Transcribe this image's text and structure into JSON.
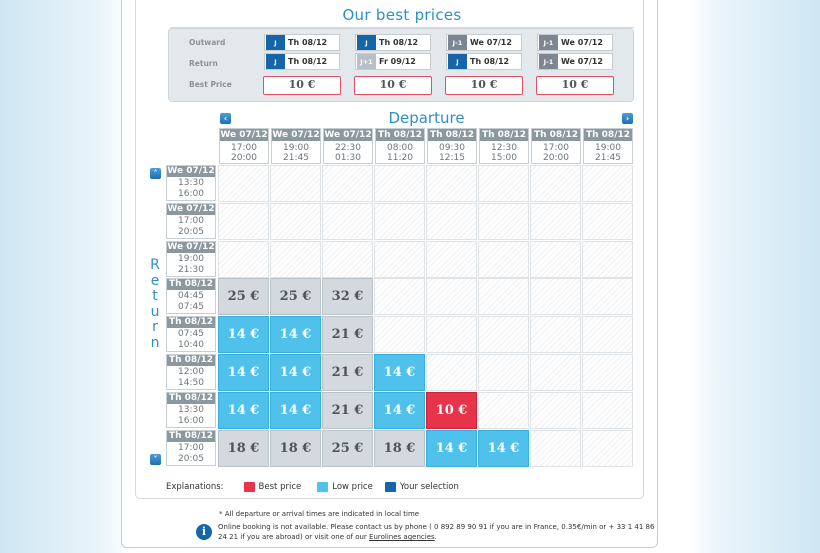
{
  "best_prices": {
    "title": "Our best prices",
    "labels": {
      "outward": "Outward",
      "return": "Return",
      "best_price": "Best Price"
    },
    "options": [
      {
        "out_tag": "J",
        "out_date": "Th 08/12",
        "ret_tag": "J",
        "ret_date": "Th 08/12",
        "price": "10 €"
      },
      {
        "out_tag": "J",
        "out_date": "Th 08/12",
        "ret_tag": "J+1",
        "ret_date": "Fr 09/12",
        "price": "10 €"
      },
      {
        "out_tag": "J-1",
        "out_date": "We 07/12",
        "ret_tag": "J",
        "ret_date": "Th 08/12",
        "price": "10 €"
      },
      {
        "out_tag": "J-1",
        "out_date": "We 07/12",
        "ret_tag": "J-1",
        "ret_date": "We 07/12",
        "price": "10 €"
      }
    ]
  },
  "grid": {
    "departure_title": "Departure",
    "return_title": "Return",
    "prev_arrow": "‹",
    "next_arrow": "›",
    "up_arrow": "˄",
    "down_arrow": "˅",
    "columns": [
      {
        "date": "We 07/12",
        "dep": "17:00",
        "arr": "20:00"
      },
      {
        "date": "We 07/12",
        "dep": "19:00",
        "arr": "21:45"
      },
      {
        "date": "We 07/12",
        "dep": "22:30",
        "arr": "01:30"
      },
      {
        "date": "Th 08/12",
        "dep": "08:00",
        "arr": "11:20"
      },
      {
        "date": "Th 08/12",
        "dep": "09:30",
        "arr": "12:15"
      },
      {
        "date": "Th 08/12",
        "dep": "12:30",
        "arr": "15:00"
      },
      {
        "date": "Th 08/12",
        "dep": "17:00",
        "arr": "20:00"
      },
      {
        "date": "Th 08/12",
        "dep": "19:00",
        "arr": "21:45"
      }
    ],
    "rows": [
      {
        "date": "We 07/12",
        "dep": "13:30",
        "arr": "16:00",
        "cells": [
          "",
          "",
          "",
          "",
          "",
          "",
          "",
          ""
        ],
        "kinds": [
          "",
          "",
          "",
          "",
          "",
          "",
          "",
          ""
        ]
      },
      {
        "date": "We 07/12",
        "dep": "17:00",
        "arr": "20:05",
        "cells": [
          "",
          "",
          "",
          "",
          "",
          "",
          "",
          ""
        ],
        "kinds": [
          "",
          "",
          "",
          "",
          "",
          "",
          "",
          ""
        ]
      },
      {
        "date": "We 07/12",
        "dep": "19:00",
        "arr": "21:30",
        "cells": [
          "",
          "",
          "",
          "",
          "",
          "",
          "",
          ""
        ],
        "kinds": [
          "",
          "",
          "",
          "",
          "",
          "",
          "",
          ""
        ]
      },
      {
        "date": "Th 08/12",
        "dep": "04:45",
        "arr": "07:45",
        "cells": [
          "25 €",
          "25 €",
          "32 €",
          "",
          "",
          "",
          "",
          ""
        ],
        "kinds": [
          "grey",
          "grey",
          "grey",
          "",
          "",
          "",
          "",
          ""
        ]
      },
      {
        "date": "Th 08/12",
        "dep": "07:45",
        "arr": "10:40",
        "cells": [
          "14 €",
          "14 €",
          "21 €",
          "",
          "",
          "",
          "",
          ""
        ],
        "kinds": [
          "low",
          "low",
          "grey",
          "",
          "",
          "",
          "",
          ""
        ]
      },
      {
        "date": "Th 08/12",
        "dep": "12:00",
        "arr": "14:50",
        "cells": [
          "14 €",
          "14 €",
          "21 €",
          "14 €",
          "",
          "",
          "",
          ""
        ],
        "kinds": [
          "low",
          "low",
          "grey",
          "low",
          "",
          "",
          "",
          ""
        ]
      },
      {
        "date": "Th 08/12",
        "dep": "13:30",
        "arr": "16:00",
        "cells": [
          "14 €",
          "14 €",
          "21 €",
          "14 €",
          "10 €",
          "",
          "",
          ""
        ],
        "kinds": [
          "low",
          "low",
          "grey",
          "low",
          "best",
          "",
          "",
          ""
        ]
      },
      {
        "date": "Th 08/12",
        "dep": "17:00",
        "arr": "20:05",
        "cells": [
          "18 €",
          "18 €",
          "25 €",
          "18 €",
          "14 €",
          "14 €",
          "",
          ""
        ],
        "kinds": [
          "grey",
          "grey",
          "grey",
          "grey",
          "low",
          "low",
          "",
          ""
        ]
      }
    ]
  },
  "explanations": {
    "label": "Explanations:",
    "best": "Best price",
    "low": "Low price",
    "selection": "Your selection",
    "colors": {
      "best": "#e8344a",
      "low": "#4fc1ea",
      "selection": "#1565a8"
    }
  },
  "notes": {
    "times": "* All departure or arrival times are indicated in local time",
    "booking": "Online booking is not available. Please contact us by phone ( 0 892 89 90 91 if you are in France, 0.35€/min or + 33 1 41 86 24 21 if you are abroad) or  visit one of our ",
    "link": "Eurolines agencies",
    "end": ".",
    "info_glyph": "i"
  }
}
